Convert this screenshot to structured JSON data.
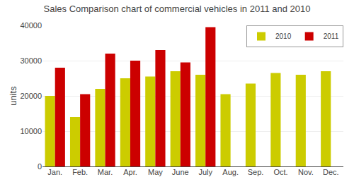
{
  "chart_data": {
    "type": "bar",
    "title": "Sales Comparison chart of commercial vehicles in 2011 and 2010",
    "y_label": "units",
    "categories": [
      "Jan.",
      "Feb.",
      "Mar.",
      "Apr.",
      "May",
      "June",
      "July",
      "Aug.",
      "Sep.",
      "Oct.",
      "Nov.",
      "Dec."
    ],
    "series": [
      {
        "name": "2010",
        "color": "#cccc00",
        "values": [
          20000,
          14000,
          22000,
          25000,
          25500,
          27000,
          26000,
          20500,
          23500,
          26500,
          26000,
          27000
        ]
      },
      {
        "name": "2011",
        "color": "#cc0000",
        "values": [
          28000,
          20500,
          32000,
          30000,
          33000,
          29500,
          39500,
          null,
          null,
          null,
          null,
          null
        ]
      }
    ],
    "ylim": [
      0,
      40000
    ],
    "yticks": [
      0,
      10000,
      20000,
      30000,
      40000
    ],
    "grid": true,
    "legend": "upper right"
  }
}
